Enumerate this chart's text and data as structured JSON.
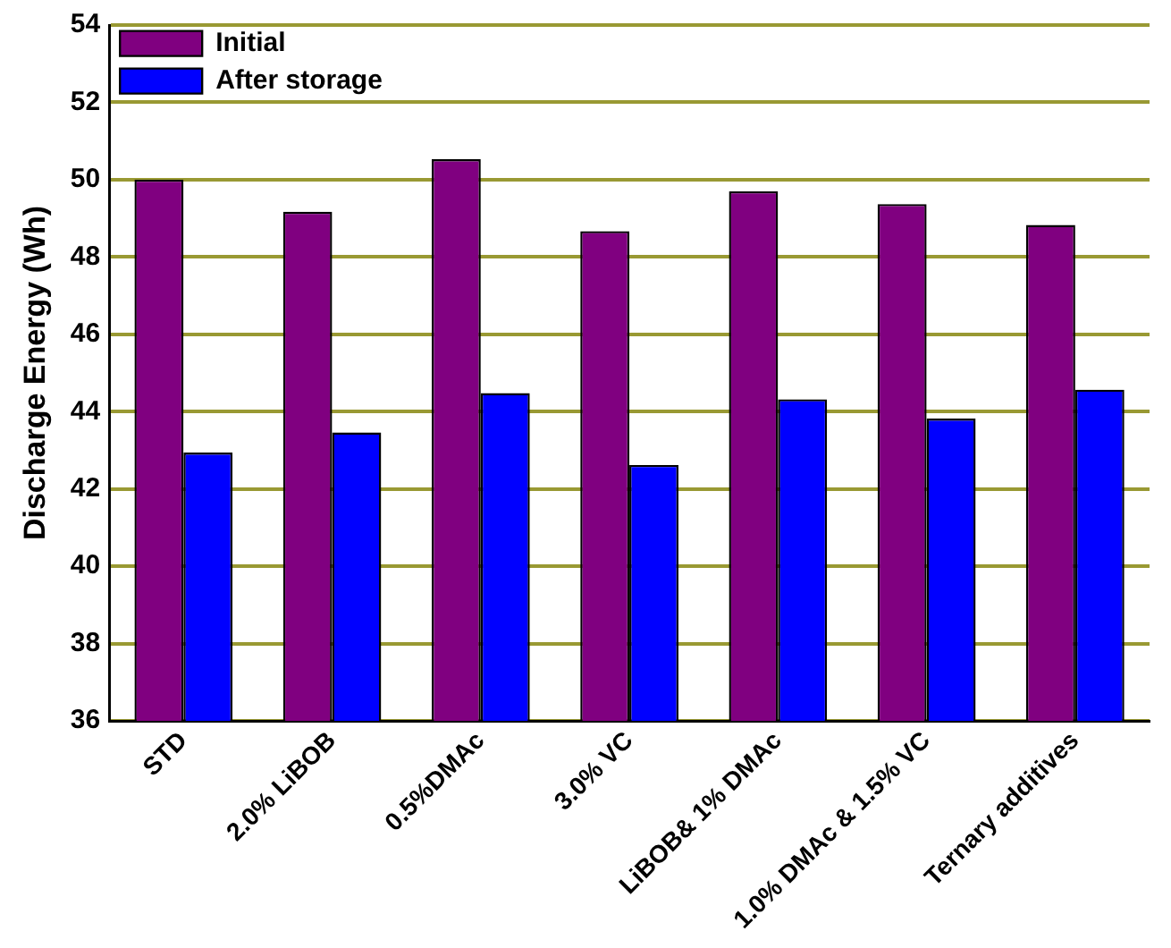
{
  "chart_data": {
    "type": "bar",
    "ylabel": "Discharge Energy (Wh)",
    "categories": [
      "STD",
      "2.0% LiBOB",
      "0.5%DMAc",
      "3.0% VC",
      "LiBOB& 1% DMAc",
      "1.0% DMAc & 1.5% VC",
      "Ternary additives"
    ],
    "series": [
      {
        "name": "Initial",
        "color": "#800080",
        "values": [
          50.0,
          49.17,
          50.53,
          48.67,
          49.7,
          49.37,
          48.83
        ]
      },
      {
        "name": "After storage",
        "color": "#0000ff",
        "values": [
          42.94,
          43.46,
          44.48,
          42.62,
          44.32,
          43.82,
          44.57
        ]
      }
    ],
    "ylim": [
      36,
      54
    ],
    "yticks": [
      36,
      38,
      40,
      42,
      44,
      46,
      48,
      50,
      52,
      54
    ],
    "grid": "y",
    "legend": "top left"
  }
}
